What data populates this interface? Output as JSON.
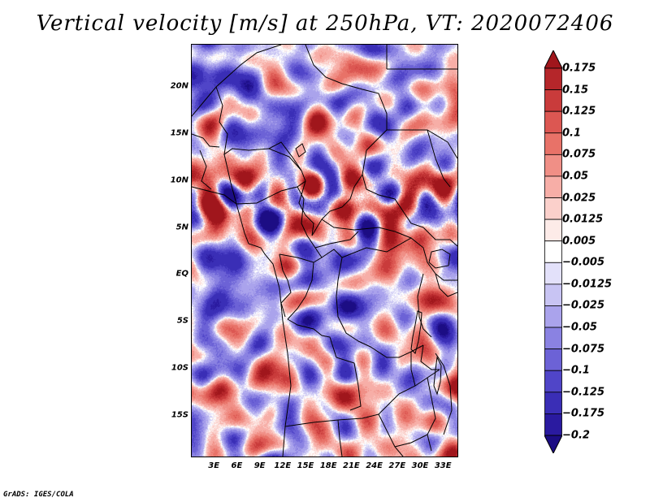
{
  "title": "Vertical velocity [m/s] at 250hPa, VT: 2020072406",
  "credit": "GrADS: IGES/COLA",
  "map": {
    "lon_range": [
      0,
      35
    ],
    "lat_range": [
      -19.5,
      24.5
    ],
    "lat_ticks": [
      {
        "value": 20,
        "label": "20N"
      },
      {
        "value": 15,
        "label": "15N"
      },
      {
        "value": 10,
        "label": "10N"
      },
      {
        "value": 5,
        "label": "5N"
      },
      {
        "value": 0,
        "label": "EQ"
      },
      {
        "value": -5,
        "label": "5S"
      },
      {
        "value": -10,
        "label": "10S"
      },
      {
        "value": -15,
        "label": "15S"
      }
    ],
    "lon_ticks": [
      {
        "value": 3,
        "label": "3E"
      },
      {
        "value": 6,
        "label": "6E"
      },
      {
        "value": 9,
        "label": "9E"
      },
      {
        "value": 12,
        "label": "12E"
      },
      {
        "value": 15,
        "label": "15E"
      },
      {
        "value": 18,
        "label": "18E"
      },
      {
        "value": 21,
        "label": "21E"
      },
      {
        "value": 24,
        "label": "24E"
      },
      {
        "value": 27,
        "label": "27E"
      },
      {
        "value": 30,
        "label": "30E"
      },
      {
        "value": 33,
        "label": "33E"
      }
    ]
  },
  "colorbar": {
    "levels": [
      0.175,
      0.15,
      0.125,
      0.1,
      0.075,
      0.05,
      0.025,
      0.0125,
      0.005,
      -0.005,
      -0.0125,
      -0.025,
      -0.05,
      -0.075,
      -0.1,
      -0.125,
      -0.175,
      -0.2
    ],
    "labels": [
      "0.175",
      "0.15",
      "0.125",
      "0.1",
      "0.075",
      "0.05",
      "0.025",
      "0.0125",
      "0.005",
      "−0.005",
      "−0.0125",
      "−0.025",
      "−0.05",
      "−0.075",
      "−0.1",
      "−0.125",
      "−0.175",
      "−0.2"
    ],
    "colors": [
      "#a0161c",
      "#b5262a",
      "#c93b3b",
      "#dc5752",
      "#e87268",
      "#f08f86",
      "#f7aea7",
      "#fbd0cb",
      "#fdebe8",
      "#ffffff",
      "#e3e1fa",
      "#c8c4f3",
      "#aaa3ec",
      "#8a82e2",
      "#6c62d6",
      "#5045c8",
      "#3a2eb6",
      "#2a1aa0",
      "#1c0d84"
    ]
  }
}
